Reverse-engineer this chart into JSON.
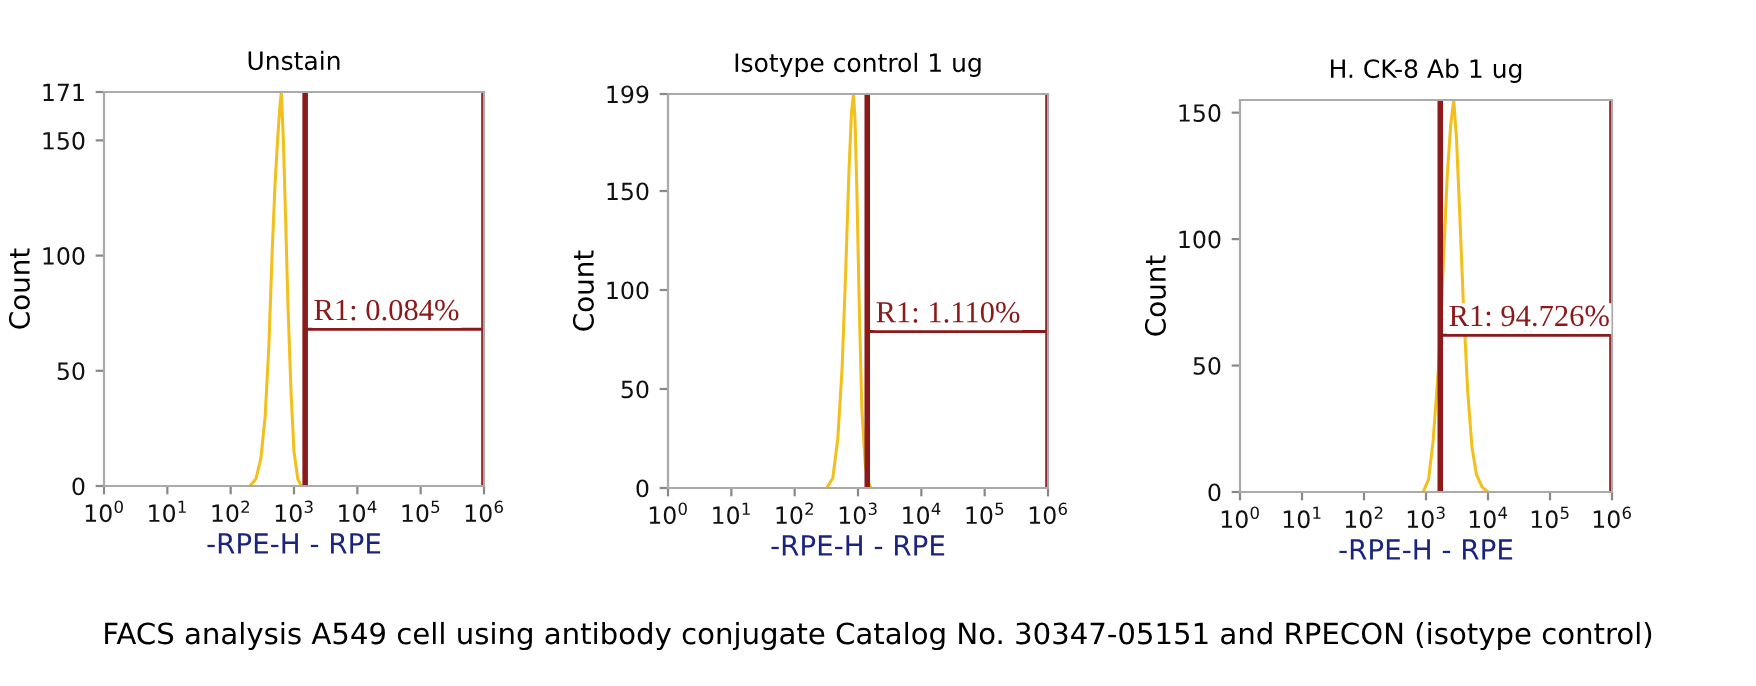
{
  "chart_data": [
    {
      "type": "line",
      "title": "Unstain",
      "xlabel": "-RPE-H - RPE",
      "ylabel": "Count",
      "log": "x",
      "grid": false,
      "legend": false,
      "xlim": [
        1,
        1000000
      ],
      "xticks": [
        {
          "value": 1,
          "label": "10$^{0}$"
        },
        {
          "value": 10,
          "label": "10$^{1}$"
        },
        {
          "value": 100,
          "label": "10$^{2}$"
        },
        {
          "value": 1000,
          "label": "10$^{3}$"
        },
        {
          "value": 10000,
          "label": "10$^{4}$"
        },
        {
          "value": 100000,
          "label": "10$^{5}$"
        },
        {
          "value": 1000000,
          "label": "10$^{6}$"
        }
      ],
      "ylim": [
        0,
        171
      ],
      "yticks": [
        0,
        50,
        100,
        150,
        171
      ],
      "series": [
        {
          "color": "#f2c01e",
          "x": [
            200,
            250,
            300,
            350,
            400,
            450,
            500,
            550,
            600,
            630,
            680,
            730,
            800,
            900,
            1000,
            1150,
            1300
          ],
          "values": [
            0,
            3,
            12,
            30,
            60,
            100,
            130,
            150,
            165,
            171,
            150,
            120,
            80,
            40,
            15,
            3,
            0
          ]
        },
        {
          "color": "#8b1a1a",
          "x": [
            1500,
            1000000
          ],
          "values": [
            68,
            68
          ]
        }
      ],
      "ref_lines": [
        {
          "axis": "x",
          "value": 1500,
          "color": "#8b1a1a"
        },
        {
          "axis": "x",
          "value": 1000000,
          "color": "#8b1a1a"
        }
      ],
      "annotations": [
        {
          "text": "R1: 0.084%",
          "x": 1500,
          "y": 68
        },
        "FACS analysis A549 cell using antibody conjugate Catalog No. 30347-05151 and RPECON (isotype control)"
      ]
    },
    {
      "type": "line",
      "title": "Isotype control 1 ug",
      "xlabel": "-RPE-H - RPE",
      "ylabel": "Count",
      "log": "x",
      "grid": false,
      "legend": false,
      "xlim": [
        1,
        1000000
      ],
      "xticks": [
        {
          "value": 1,
          "label": "10$^{0}$"
        },
        {
          "value": 10,
          "label": "10$^{1}$"
        },
        {
          "value": 100,
          "label": "10$^{2}$"
        },
        {
          "value": 1000,
          "label": "10$^{3}$"
        },
        {
          "value": 10000,
          "label": "10$^{4}$"
        },
        {
          "value": 100000,
          "label": "10$^{5}$"
        },
        {
          "value": 1000000,
          "label": "10$^{6}$"
        }
      ],
      "ylim": [
        0,
        199
      ],
      "yticks": [
        0,
        50,
        100,
        150,
        199
      ],
      "series": [
        {
          "color": "#f2c01e",
          "x": [
            320,
            400,
            480,
            560,
            640,
            720,
            790,
            850,
            900,
            960,
            1050,
            1150,
            1300,
            1450,
            1600
          ],
          "values": [
            0,
            5,
            25,
            60,
            110,
            160,
            190,
            199,
            185,
            150,
            90,
            40,
            12,
            3,
            0
          ]
        },
        {
          "color": "#8b1a1a",
          "x": [
            1400,
            1000000
          ],
          "values": [
            79,
            79
          ]
        }
      ],
      "ref_lines": [
        {
          "axis": "x",
          "value": 1400,
          "color": "#8b1a1a"
        },
        {
          "axis": "x",
          "value": 1000000,
          "color": "#8b1a1a"
        }
      ],
      "annotations": [
        {
          "text": "R1: 1.110%",
          "x": 1400,
          "y": 79
        }
      ]
    },
    {
      "type": "line",
      "title": "H. CK-8 Ab 1 ug",
      "xlabel": "-RPE-H - RPE",
      "ylabel": "Count",
      "log": "x",
      "grid": false,
      "legend": false,
      "xlim": [
        1,
        1000000
      ],
      "xticks": [
        {
          "value": 1,
          "label": "10$^{0}$"
        },
        {
          "value": 10,
          "label": "10$^{1}$"
        },
        {
          "value": 100,
          "label": "10$^{2}$"
        },
        {
          "value": 1000,
          "label": "10$^{3}$"
        },
        {
          "value": 10000,
          "label": "10$^{4}$"
        },
        {
          "value": 100000,
          "label": "10$^{5}$"
        },
        {
          "value": 1000000,
          "label": "10$^{6}$"
        }
      ],
      "ylim": [
        0,
        155
      ],
      "yticks": [
        0,
        50,
        100,
        150
      ],
      "series": [
        {
          "color": "#f2c01e",
          "x": [
            900,
            1100,
            1300,
            1600,
            1900,
            2200,
            2500,
            2800,
            3100,
            3500,
            4000,
            4700,
            5500,
            6500,
            8000,
            10000
          ],
          "values": [
            0,
            5,
            20,
            50,
            90,
            125,
            145,
            155,
            140,
            110,
            75,
            40,
            18,
            7,
            2,
            0
          ]
        },
        {
          "color": "#8b1a1a",
          "x": [
            1700,
            1000000
          ],
          "values": [
            62,
            62
          ]
        }
      ],
      "ref_lines": [
        {
          "axis": "x",
          "value": 1700,
          "color": "#8b1a1a"
        },
        {
          "axis": "x",
          "value": 1000000,
          "color": "#8b1a1a"
        }
      ],
      "annotations": [
        {
          "text": "R1: 94.726%",
          "x": 1700,
          "y": 62
        }
      ]
    }
  ]
}
